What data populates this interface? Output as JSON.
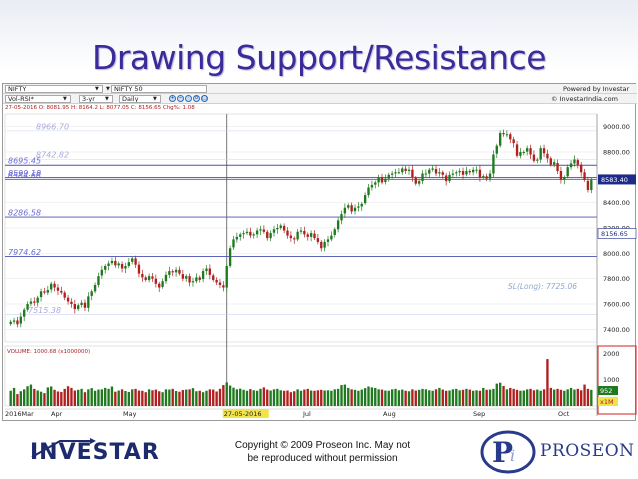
{
  "slide": {
    "title": "Drawing Support/Resistance"
  },
  "toolbar": {
    "symbol": "NIFTY",
    "symbol_name": "NIFTY 50",
    "powered_by": "Powered by Investar",
    "indicator": "Vol-RSI*",
    "period": "3-yr",
    "interval": "Daily",
    "copyright": "© InvestarIndia.com",
    "zoom_icons": [
      "zoom-in-icon",
      "zoom-out-icon",
      "zoom-fit-icon",
      "zoom-reset-icon",
      "zoom-area-icon"
    ]
  },
  "ohlc_info": "27-05-2016  O: 8081.95  H: 8164.2  L: 8077.05  C: 8156.65  Chg%: 1.08",
  "colors": {
    "up": "#1f7a1f",
    "down": "#b02020",
    "support_line": "#4a4fb0",
    "label_text": "#6b6bd6",
    "accent": "#2a2a9a"
  },
  "chart_data": {
    "type": "candlestick",
    "title": "",
    "ylim": [
      7300,
      9100
    ],
    "y_ticks": [
      "9000.00",
      "8800.00",
      "8600.00",
      "8400.00",
      "8200.00",
      "8000.00",
      "7800.00",
      "7600.00",
      "7400.00"
    ],
    "x_labels": [
      "2016Mar",
      "Apr",
      "May",
      "27-05-2016",
      "Jul",
      "Aug",
      "Sep",
      "Oct"
    ],
    "last_price_label": "8583.40",
    "cursor_price_label": "8156.65",
    "levels": [
      {
        "label": "8966.70",
        "value": 8966.7,
        "style": "faint"
      },
      {
        "label": "8742.82",
        "value": 8742.82,
        "style": "faint"
      },
      {
        "label": "8695.45",
        "value": 8695.45,
        "style": "line"
      },
      {
        "label": "8599.18",
        "value": 8599.18,
        "style": "line"
      },
      {
        "label": "8584.68",
        "value": 8584.68,
        "style": "line"
      },
      {
        "label": "8286.58",
        "value": 8286.58,
        "style": "line"
      },
      {
        "label": "7974.62",
        "value": 7974.62,
        "style": "line"
      },
      {
        "label": "7515.38",
        "value": 7515.38,
        "style": "faint"
      }
    ],
    "annotation": "SL(Long): 7725.06",
    "closes": [
      7460,
      7470,
      7440,
      7500,
      7555,
      7600,
      7620,
      7610,
      7650,
      7700,
      7690,
      7710,
      7760,
      7730,
      7705,
      7690,
      7650,
      7620,
      7600,
      7560,
      7590,
      7610,
      7570,
      7660,
      7700,
      7750,
      7820,
      7870,
      7900,
      7920,
      7940,
      7905,
      7920,
      7880,
      7900,
      7930,
      7960,
      7910,
      7840,
      7810,
      7790,
      7820,
      7800,
      7760,
      7730,
      7780,
      7830,
      7860,
      7850,
      7870,
      7840,
      7800,
      7820,
      7770,
      7780,
      7810,
      7790,
      7860,
      7880,
      7830,
      7790,
      7770,
      7750,
      7730,
      7900,
      8040,
      8110,
      8130,
      8150,
      8160,
      8170,
      8140,
      8150,
      8180,
      8190,
      8170,
      8120,
      8160,
      8190,
      8200,
      8220,
      8180,
      8140,
      8120,
      8110,
      8170,
      8180,
      8150,
      8130,
      8160,
      8120,
      8090,
      8040,
      8090,
      8110,
      8140,
      8190,
      8260,
      8310,
      8360,
      8380,
      8330,
      8360,
      8370,
      8390,
      8460,
      8520,
      8540,
      8560,
      8600,
      8560,
      8590,
      8620,
      8630,
      8640,
      8640,
      8670,
      8650,
      8660,
      8600,
      8550,
      8570,
      8630,
      8630,
      8660,
      8670,
      8630,
      8640,
      8620,
      8570,
      8620,
      8630,
      8640,
      8650,
      8620,
      8650,
      8640,
      8660,
      8660,
      8600,
      8610,
      8590,
      8630,
      8780,
      8850,
      8950,
      8940,
      8940,
      8900,
      8870,
      8770,
      8800,
      8800,
      8830,
      8780,
      8730,
      8740,
      8830,
      8790,
      8750,
      8700,
      8720,
      8650,
      8580,
      8600,
      8680,
      8710,
      8740,
      8700,
      8640,
      8580,
      8500,
      8580
    ],
    "volume_axis": [
      "2000",
      "1000"
    ],
    "volume_label": "VOLUME: 1000.68 (x1000000)",
    "volume_last": "952",
    "volume_unit": "x1M",
    "volumes": [
      640,
      760,
      500,
      620,
      700,
      830,
      900,
      720,
      650,
      600,
      540,
      780,
      820,
      680,
      610,
      590,
      720,
      830,
      760,
      650,
      680,
      720,
      580,
      700,
      750,
      640,
      690,
      700,
      760,
      720,
      820,
      600,
      650,
      700,
      630,
      590,
      700,
      720,
      650,
      640,
      580,
      700,
      660,
      690,
      620,
      580,
      700,
      690,
      720,
      630,
      600,
      670,
      690,
      700,
      750,
      620,
      640,
      580,
      640,
      700,
      690,
      610,
      720,
      880,
      990,
      860,
      770,
      700,
      730,
      680,
      640,
      710,
      660,
      640,
      720,
      780,
      690,
      650,
      700,
      720,
      660,
      640,
      650,
      580,
      620,
      700,
      640,
      690,
      720,
      650,
      640,
      660,
      680,
      650,
      660,
      640,
      700,
      720,
      880,
      900,
      760,
      700,
      680,
      640,
      690,
      750,
      820,
      780,
      760,
      700,
      690,
      650,
      640,
      700,
      720,
      660,
      690,
      640,
      620,
      700,
      650,
      680,
      720,
      700,
      660,
      640,
      700,
      760,
      690,
      640,
      650,
      700,
      720,
      660,
      680,
      720,
      690,
      640,
      660,
      640,
      760,
      680,
      690,
      720,
      940,
      980,
      840,
      700,
      760,
      720,
      680,
      640,
      650,
      700,
      720,
      660,
      690,
      640,
      700,
      1970,
      760,
      690,
      720,
      680,
      640,
      700,
      760,
      690,
      720,
      660,
      900,
      720,
      680
    ]
  },
  "footer": {
    "investar_logo": "INVESTAR",
    "copyright_line1": "Copyright © 2009 Proseon Inc. May not",
    "copyright_line2": "be reproduced without permission",
    "proseon_logo": "PROSEON"
  }
}
